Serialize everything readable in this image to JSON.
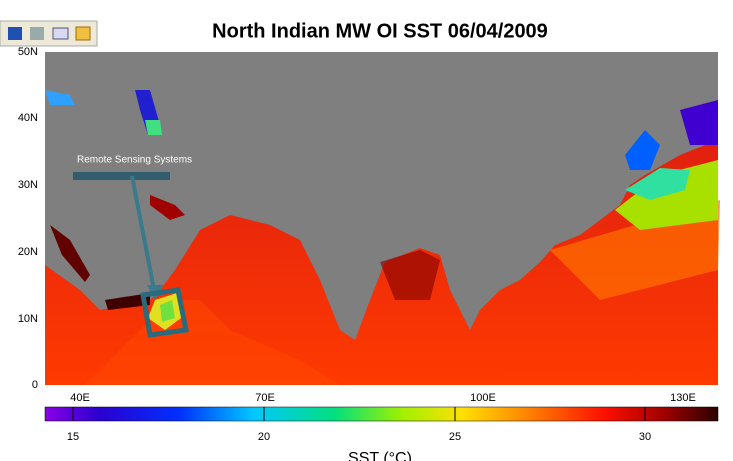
{
  "title": "North Indian MW OI SST 06/04/2009",
  "lat_labels": [
    "50N",
    "40N",
    "30N",
    "20N",
    "10N",
    "0"
  ],
  "lon_labels": [
    "40E",
    "70E",
    "100E",
    "130E"
  ],
  "colorbar": {
    "ticks": [
      "15",
      "20",
      "25",
      "30"
    ],
    "label": "SST (°C)"
  },
  "annotation": "Remote Sensing Systems"
}
